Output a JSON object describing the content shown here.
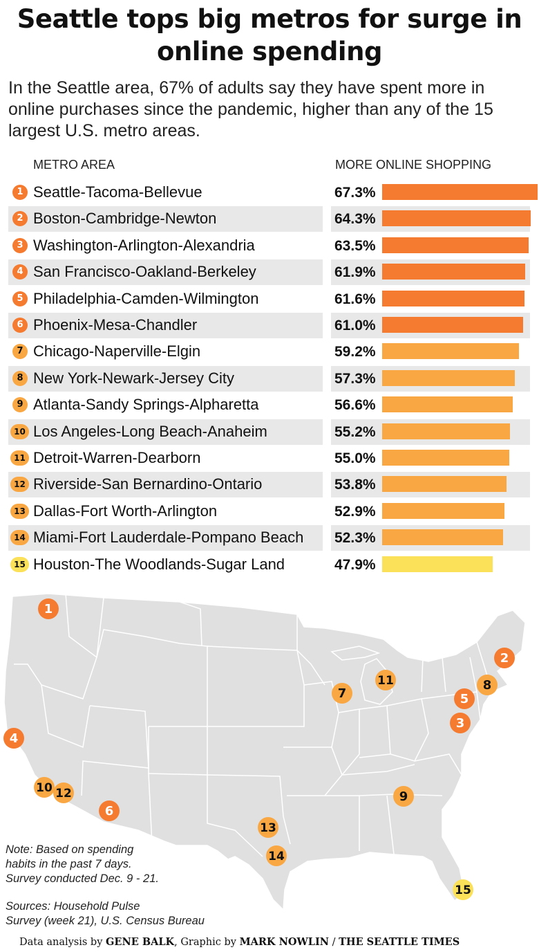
{
  "title": "Seattle tops big metros for surge in online spending",
  "subtitle": "In the Seattle area, 67% of adults say they have spent more in online purchases since the pandemic, higher than any of the 15 largest U.S. metro areas.",
  "column_headers": {
    "metro": "METRO AREA",
    "value": "MORE ONLINE SHOPPING"
  },
  "colors": {
    "top": "#f47b30",
    "mid": "#f9a743",
    "low": "#fbe05a",
    "row_shade": "#e8e8e8",
    "map_fill": "#e0e0e0",
    "map_border": "#ffffff"
  },
  "chart_data": {
    "type": "bar",
    "orientation": "horizontal",
    "ylabel": "METRO AREA",
    "xlabel": "MORE ONLINE SHOPPING",
    "unit": "%",
    "xlim": [
      0,
      67.3
    ],
    "categories": [
      "Seattle-Tacoma-Bellevue",
      "Boston-Cambridge-Newton",
      "Washington-Arlington-Alexandria",
      "San Francisco-Oakland-Berkeley",
      "Philadelphia-Camden-Wilmington",
      "Phoenix-Mesa-Chandler",
      "Chicago-Naperville-Elgin",
      "New York-Newark-Jersey City",
      "Atlanta-Sandy Springs-Alpharetta",
      "Los Angeles-Long Beach-Anaheim",
      "Detroit-Warren-Dearborn",
      "Riverside-San Bernardino-Ontario",
      "Dallas-Fort Worth-Arlington",
      "Miami-Fort Lauderdale-Pompano Beach",
      "Houston-The Woodlands-Sugar Land"
    ],
    "values": [
      67.3,
      64.3,
      63.5,
      61.9,
      61.6,
      61.0,
      59.2,
      57.3,
      56.6,
      55.2,
      55.0,
      53.8,
      52.9,
      52.3,
      47.9
    ],
    "labels": [
      "67.3%",
      "64.3%",
      "63.5%",
      "61.9%",
      "61.6%",
      "61.0%",
      "59.2%",
      "57.3%",
      "56.6%",
      "55.2%",
      "55.0%",
      "53.8%",
      "52.9%",
      "52.3%",
      "47.9%"
    ],
    "ranks": [
      "1",
      "2",
      "3",
      "4",
      "5",
      "6",
      "7",
      "8",
      "9",
      "10",
      "11",
      "12",
      "13",
      "14",
      "15"
    ],
    "tier": [
      "top",
      "top",
      "top",
      "top",
      "top",
      "top",
      "mid",
      "mid",
      "mid",
      "mid",
      "mid",
      "mid",
      "mid",
      "mid",
      "low"
    ]
  },
  "map_markers": [
    "1",
    "2",
    "3",
    "4",
    "5",
    "6",
    "7",
    "8",
    "9",
    "10",
    "11",
    "12",
    "13",
    "14",
    "15"
  ],
  "notes": {
    "note_lines": [
      "Note: Based on spending",
      "habits in the past 7 days.",
      "Survey conducted Dec. 9 - 21."
    ],
    "source_lines": [
      "Sources: Household Pulse",
      "Survey (week 21), U.S. Census Bureau"
    ]
  },
  "credit": {
    "prefix": "Data analysis by ",
    "analyst": "GENE BALK",
    "middle": ", Graphic by ",
    "artist": "MARK NOWLIN",
    "sep": " / ",
    "org": "THE SEATTLE TIMES"
  }
}
